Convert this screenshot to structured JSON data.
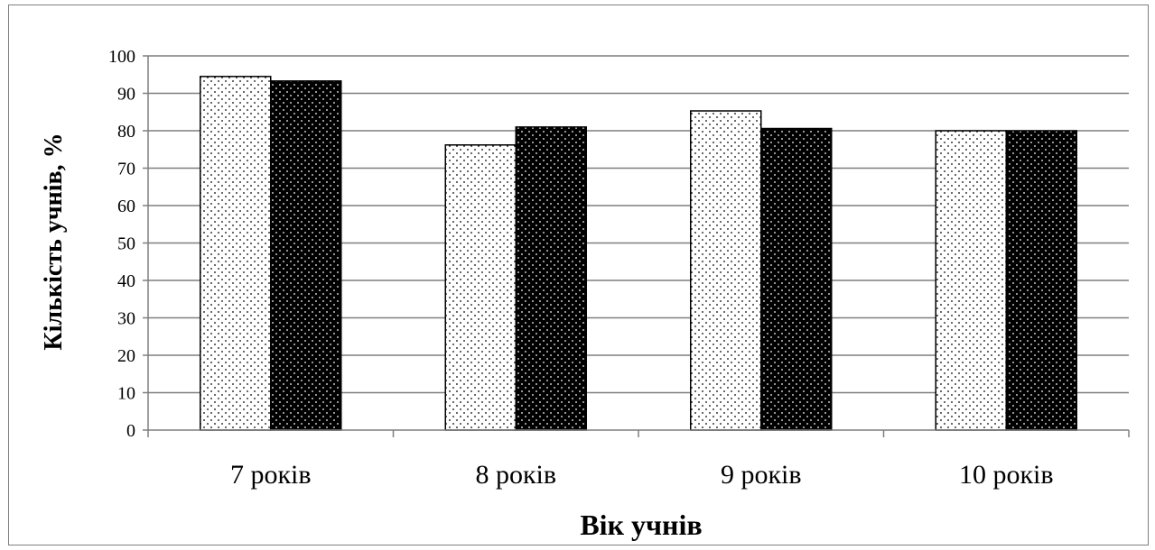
{
  "chart_data": {
    "type": "bar",
    "title": "",
    "xlabel": "Вік учнів",
    "ylabel": "Кількість учнів, %",
    "categories": [
      "7 років",
      "8 років",
      "9 років",
      "10 років"
    ],
    "series": [
      {
        "values": [
          94.5,
          76.2,
          85.3,
          80.0
        ],
        "pattern": "sparse-dots-on-white",
        "fill": "#ffffff",
        "dot_color": "#000000"
      },
      {
        "values": [
          93.3,
          81.0,
          80.6,
          80.0
        ],
        "pattern": "white-dots-on-black",
        "fill": "#000000",
        "dot_color": "#ffffff"
      }
    ],
    "ylim": [
      0,
      100
    ],
    "yticks": [
      0,
      10,
      20,
      30,
      40,
      50,
      60,
      70,
      80,
      90,
      100
    ],
    "grid": true,
    "legend": "none"
  },
  "colors": {
    "frame_border": "#7f7f7f",
    "gridline": "#7f7f7f",
    "axis": "#7f7f7f",
    "bar_outline": "#000000"
  }
}
